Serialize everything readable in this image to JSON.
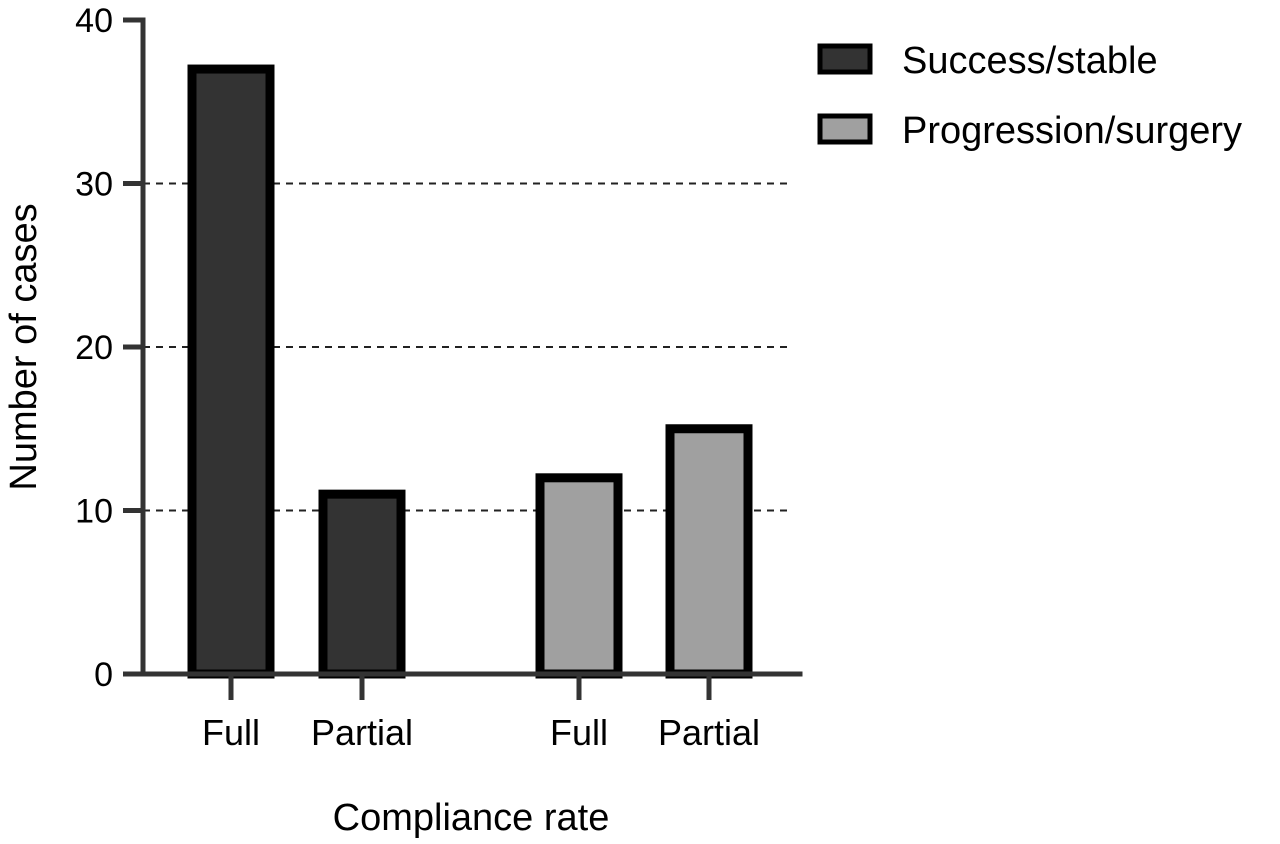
{
  "chart_data": {
    "type": "bar",
    "xlabel": "Compliance rate",
    "ylabel": "Number of cases",
    "ylim": [
      0,
      40
    ],
    "yticks": [
      0,
      10,
      20,
      30,
      40
    ],
    "grid": {
      "horizontal_dashed_at": [
        10,
        20,
        30
      ]
    },
    "legend_position": "top-right",
    "groups": [
      {
        "series": "Success/stable",
        "categories": [
          "Full",
          "Partial"
        ],
        "values": [
          37,
          11
        ]
      },
      {
        "series": "Progression/surgery",
        "categories": [
          "Full",
          "Partial"
        ],
        "values": [
          12,
          15
        ]
      }
    ],
    "series": [
      {
        "name": "Success/stable",
        "color": "#333333"
      },
      {
        "name": "Progression/surgery",
        "color": "#a0a0a0"
      }
    ]
  }
}
